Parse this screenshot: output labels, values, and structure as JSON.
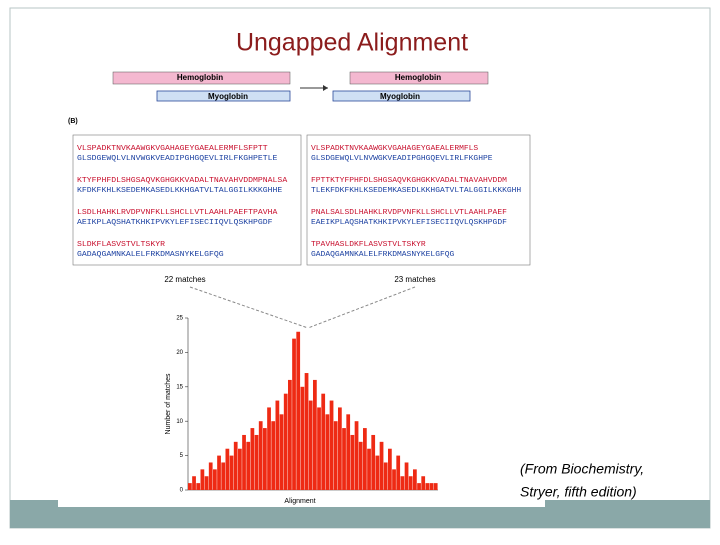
{
  "title": "Ungapped Alignment",
  "figure": {
    "diagram": {
      "left": {
        "top": "Hemoglobin",
        "bottom": "Myoglobin"
      },
      "right": {
        "top": "Hemoglobin",
        "bottom": "Myoglobin"
      }
    },
    "panel_label": "(B)",
    "alignments": [
      {
        "rows": [
          [
            "VLSPADKTNVKAAWGKVGAHAGEYGAEALERMFLSFPTT",
            "GLSDGEWQLVLNVWGKVEADIPGHGQEVLIRLFKGHPETLE"
          ],
          [
            "KTYFPHFDLSHGSAQVKGHGKKVADALTNAVAHVDDMPNALSA",
            "KFDKFKHLKSEDEMKASEDLKKHGATVLTALGGILKKKGHHE"
          ],
          [
            "LSDLHAHKLRVDPVNFKLLSHCLLVTLAAHLPAEFTPAVHA",
            "AEIKPLAQSHATKHKIPVKYLEFISECIIQVLQSKHPGDF"
          ],
          [
            "SLDKFLASVSTVLTSKYR",
            "GADAQGAMNKALELFRKDMASNYKELGFQG"
          ]
        ],
        "matches": "22 matches"
      },
      {
        "rows": [
          [
            "VLSPADKTNVKAAWGKVGAHAGEYGAEALERMFLS",
            "GLSDGEWQLVLNVWGKVEADIPGHGQEVLIRLFKGHPE"
          ],
          [
            "FPTTKTYFPHFDLSHGSAQVKGHGKKVADALTNAVAHVDDM",
            "TLEKFDKFKHLKSEDEMKASEDLKKHGATVLTALGGILKKKGHH"
          ],
          [
            "PNALSALSDLHAHKLRVDPVNFKLLSHCLLVTLAAHLPAEF",
            "EAEIKPLAQSHATKHKIPVKYLEFISECIIQVLQSKHPGDF"
          ],
          [
            "TPAVHASLDKFLASVSTVLTSKYR",
            "GADAQGAMNKALELFRKDMASNYKELGFQG"
          ]
        ],
        "matches": "23 matches"
      }
    ],
    "histogram": {
      "type": "bar",
      "x_label": "Alignment",
      "y_label": "Number of matches",
      "ylim": [
        0,
        25
      ],
      "yticks": [
        0,
        5,
        10,
        15,
        20,
        25
      ],
      "color": "#ee2a14",
      "values": [
        1,
        2,
        1,
        3,
        2,
        4,
        3,
        5,
        4,
        6,
        5,
        7,
        6,
        8,
        7,
        9,
        8,
        10,
        9,
        12,
        10,
        13,
        11,
        14,
        16,
        22,
        23,
        15,
        17,
        13,
        16,
        12,
        14,
        11,
        13,
        10,
        12,
        9,
        11,
        8,
        10,
        7,
        9,
        6,
        8,
        5,
        7,
        4,
        6,
        3,
        5,
        2,
        4,
        2,
        3,
        1,
        2,
        1,
        1,
        1
      ]
    }
  },
  "caption": [
    "(From Biochemistry,",
    "Stryer, fifth edition)"
  ]
}
